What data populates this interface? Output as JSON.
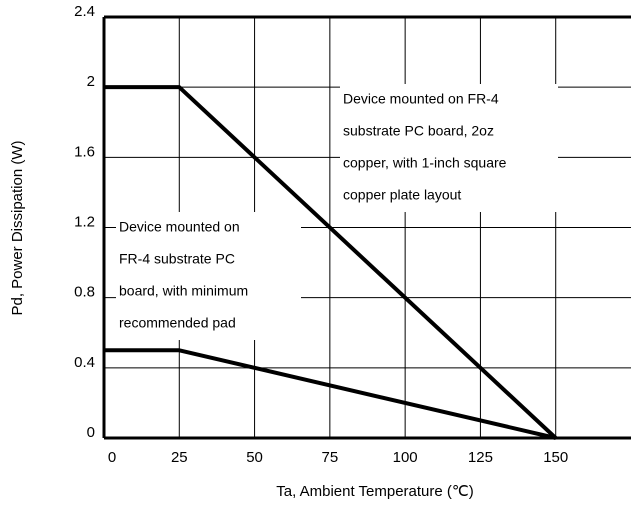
{
  "chart_data": {
    "type": "line",
    "x_label": "Ta, Ambient Temperature (℃)",
    "y_label": "Pd, Power Dissipation (W)",
    "xlim": [
      0,
      175
    ],
    "xticks": [
      0,
      25,
      50,
      75,
      100,
      125,
      150
    ],
    "ylim": [
      0,
      2.4
    ],
    "yticks": [
      0,
      0.4,
      0.8,
      1.2,
      1.6,
      2.0,
      2.4
    ],
    "grid": true,
    "x": [
      0,
      25,
      150
    ],
    "series": [
      {
        "color": "#000000",
        "values": [
          2.0,
          2.0,
          0
        ]
      },
      {
        "color": "#000000",
        "values": [
          0.5,
          0.5,
          0
        ]
      }
    ],
    "annotations": [
      [
        "Device mounted on FR-4",
        "substrate PC board, 2oz",
        "copper, with 1-inch square",
        "copper plate layout"
      ],
      [
        "Device mounted on",
        "FR-4 substrate PC",
        "board, with minimum",
        "recommended pad"
      ]
    ]
  }
}
